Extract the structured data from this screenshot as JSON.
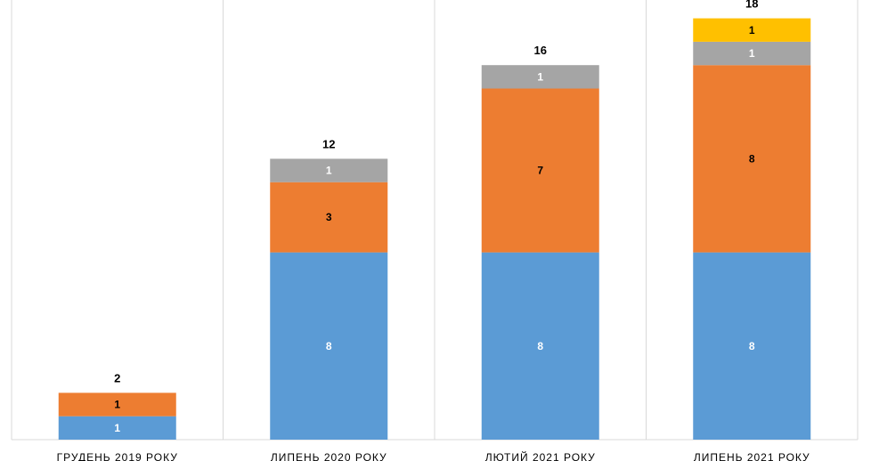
{
  "chart_data": {
    "type": "bar",
    "stacked": true,
    "categories": [
      "ГРУДЕНЬ 2019 РОКУ",
      "ЛИПЕНЬ 2020 РОКУ",
      "ЛЮТИЙ 2021 РОКУ",
      "ЛИПЕНЬ 2021 РОКУ"
    ],
    "series": [
      {
        "color": "#5B9BD5",
        "label_color": "#ffffff",
        "values": [
          1,
          8,
          8,
          8
        ]
      },
      {
        "color": "#ED7D31",
        "label_color": "#000000",
        "values": [
          1,
          3,
          7,
          8
        ]
      },
      {
        "color": "#A5A5A5",
        "label_color": "#ffffff",
        "values": [
          0,
          1,
          1,
          1
        ]
      },
      {
        "color": "#FFC000",
        "label_color": "#000000",
        "values": [
          0,
          0,
          0,
          1
        ]
      }
    ],
    "totals": [
      2,
      12,
      16,
      18
    ],
    "ylim": [
      0,
      19
    ],
    "grid": false,
    "category_dividers": true,
    "legend": "none",
    "title": "",
    "xlabel": "",
    "ylabel": ""
  }
}
